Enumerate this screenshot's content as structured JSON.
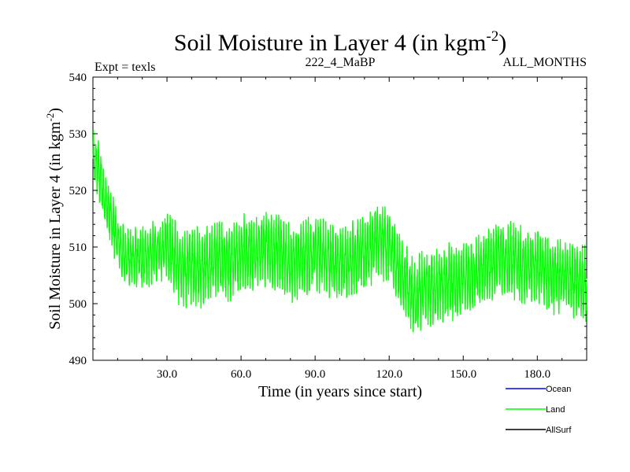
{
  "chart_data": {
    "type": "line",
    "title_main": "Soil Moisture in Layer 4 (in kgm",
    "title_sup": "-2",
    "title_close": ")",
    "subtitle_left": "Expt = texls",
    "subtitle_center": "222_4_MaBP",
    "subtitle_right": "ALL_MONTHS",
    "xlabel": "Time (in years since start)",
    "ylabel_main": "Soil Moisture in Layer 4 (in kgm",
    "ylabel_sup": "-2",
    "ylabel_close": ")",
    "xlim": [
      0,
      200
    ],
    "ylim": [
      490,
      540
    ],
    "x_ticks": [
      30,
      60,
      90,
      120,
      150,
      180
    ],
    "x_tick_labels": [
      "30.0",
      "60.0",
      "90.0",
      "120.0",
      "150.0",
      "180.0"
    ],
    "y_ticks": [
      490,
      500,
      510,
      520,
      530,
      540
    ],
    "y_tick_labels": [
      "490",
      "500",
      "510",
      "520",
      "530",
      "540"
    ],
    "series": [
      {
        "name": "Ocean",
        "color": "#0000ff",
        "values": []
      },
      {
        "name": "Land",
        "color": "#00ff00",
        "years": [
          0,
          2,
          4,
          6,
          8,
          10,
          12,
          15,
          18,
          20,
          25,
          28,
          30,
          33,
          36,
          40,
          45,
          50,
          55,
          60,
          65,
          70,
          75,
          80,
          85,
          90,
          95,
          100,
          105,
          110,
          115,
          118,
          120,
          122,
          125,
          128,
          130,
          133,
          136,
          140,
          145,
          150,
          155,
          160,
          165,
          170,
          175,
          180,
          185,
          190,
          195,
          200
        ],
        "mean": [
          525,
          524,
          520,
          517,
          514,
          511,
          509,
          508,
          508,
          508,
          509,
          509,
          511,
          508,
          506,
          507,
          506,
          508,
          507,
          509,
          509,
          510,
          509,
          507,
          508,
          509,
          508,
          507,
          508,
          509,
          511,
          511,
          510,
          508,
          505,
          503,
          501,
          502,
          503,
          503,
          504,
          504,
          505,
          507,
          508,
          508,
          506,
          507,
          505,
          505,
          504,
          503
        ],
        "amp": [
          4,
          4,
          4,
          4,
          4,
          4,
          4,
          4,
          4,
          4,
          4,
          4,
          5,
          5,
          5,
          5,
          5,
          5,
          5,
          5,
          5,
          5,
          5,
          5,
          5,
          5,
          5,
          5,
          5,
          5,
          5,
          5,
          5,
          5,
          5,
          5,
          5,
          5,
          5,
          5,
          5,
          5,
          5,
          5,
          5,
          5,
          5,
          5,
          5,
          5,
          5,
          5
        ]
      },
      {
        "name": "AllSurf",
        "color": "#000000",
        "values": []
      }
    ],
    "legend_position": "bottom-right"
  }
}
